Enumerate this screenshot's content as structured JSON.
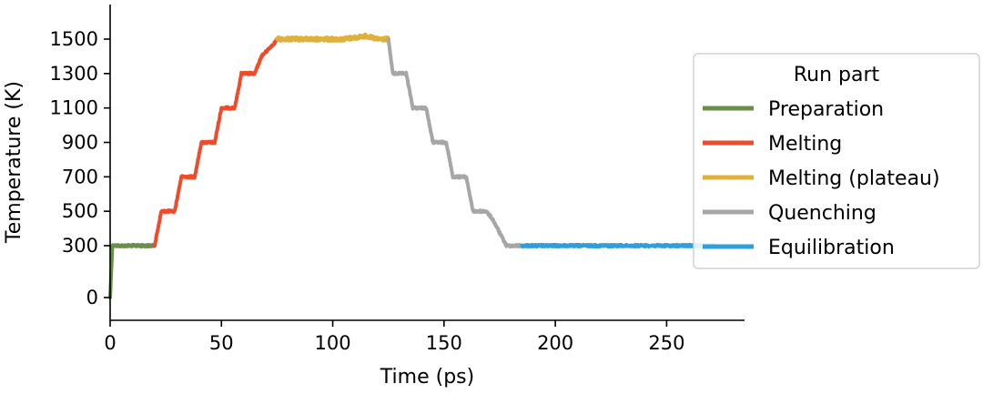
{
  "chart_data": {
    "type": "line",
    "title": "",
    "xlabel": "Time (ps)",
    "ylabel": "Temperature (K)",
    "xlim": [
      0,
      285
    ],
    "ylim": [
      -70,
      1610
    ],
    "y_scale": "piecewise-linear (0–300 compressed)",
    "x_ticks": [
      0,
      50,
      100,
      150,
      200,
      250
    ],
    "y_ticks": [
      0,
      300,
      500,
      700,
      900,
      1100,
      1300,
      1500
    ],
    "grid": false,
    "legend": {
      "title": "Run part",
      "placement": "center-right"
    },
    "series": [
      {
        "name": "Preparation",
        "color": "#6a8f4b",
        "x": [
          0,
          1,
          2,
          5,
          10,
          15,
          20
        ],
        "y": [
          0,
          300,
          300,
          300,
          300,
          300,
          300
        ]
      },
      {
        "name": "Melting",
        "color": "#f04a2a",
        "x": [
          20,
          23,
          29,
          32,
          38,
          41,
          47,
          50,
          56,
          59,
          65,
          68,
          74,
          75
        ],
        "y": [
          300,
          500,
          500,
          700,
          700,
          900,
          900,
          1100,
          1100,
          1300,
          1300,
          1400,
          1480,
          1500
        ]
      },
      {
        "name": "Melting (plateau)",
        "color": "#e0b03c",
        "x": [
          75,
          85,
          95,
          105,
          115,
          120,
          125
        ],
        "y": [
          1500,
          1500,
          1500,
          1500,
          1510,
          1500,
          1500
        ]
      },
      {
        "name": "Quenching",
        "color": "#a6a6a6",
        "x": [
          125,
          127,
          133,
          136,
          142,
          145,
          151,
          154,
          160,
          163,
          169,
          172,
          178,
          181,
          185
        ],
        "y": [
          1500,
          1300,
          1300,
          1100,
          1100,
          900,
          900,
          700,
          700,
          500,
          500,
          450,
          300,
          300,
          300
        ]
      },
      {
        "name": "Equilibration",
        "color": "#2e9fd8",
        "x": [
          185,
          200,
          215,
          230,
          245,
          260,
          272
        ],
        "y": [
          300,
          300,
          300,
          300,
          300,
          300,
          300
        ]
      }
    ]
  }
}
